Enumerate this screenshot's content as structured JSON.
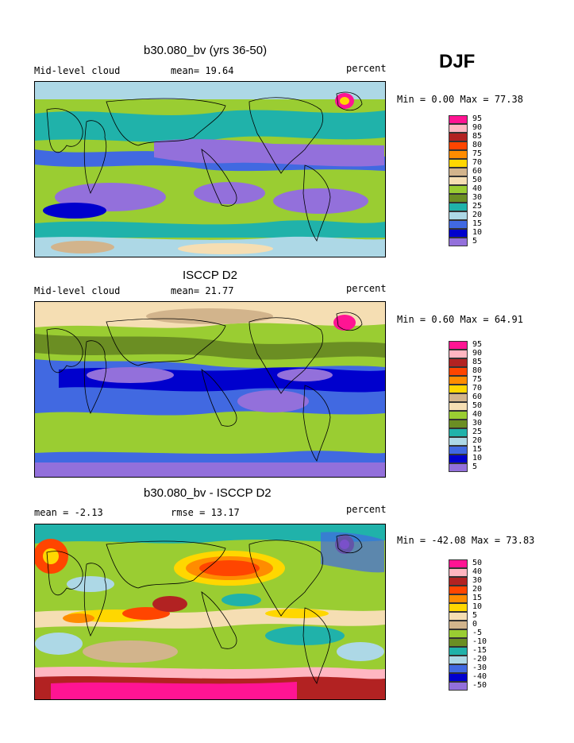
{
  "season": "DJF",
  "panels": [
    {
      "title": "b30.080_bv (yrs 36-50)",
      "left_label": "Mid-level cloud",
      "center_label": "mean=  19.64",
      "right_label": "percent",
      "minmax": "Min =   0.00 Max =  77.38"
    },
    {
      "title": "ISCCP D2",
      "left_label": "Mid-level cloud",
      "center_label": "mean=  21.77",
      "right_label": "percent",
      "minmax": "Min =   0.60 Max =  64.91"
    },
    {
      "title": "b30.080_bv - ISCCP D2",
      "left_label": "mean =  -2.13",
      "center_label": "rmse =  13.17",
      "right_label": "percent",
      "minmax": "Min = -42.08 Max =  73.83"
    }
  ],
  "legend_abs": {
    "labels": [
      "95",
      "90",
      "85",
      "80",
      "75",
      "70",
      "60",
      "50",
      "40",
      "30",
      "25",
      "20",
      "15",
      "10",
      "5"
    ],
    "colors": [
      "#ff1493",
      "#ffb6c1",
      "#b22222",
      "#ff4500",
      "#ff8c00",
      "#ffd700",
      "#d2b48c",
      "#f5deb3",
      "#9acd32",
      "#6b8e23",
      "#20b2aa",
      "#add8e6",
      "#4169e1",
      "#0000cd",
      "#9370db"
    ]
  },
  "legend_diff": {
    "labels": [
      "50",
      "40",
      "30",
      "20",
      "15",
      "10",
      "5",
      "0",
      "-5",
      "-10",
      "-15",
      "-20",
      "-30",
      "-40",
      "-50"
    ],
    "colors": [
      "#ff1493",
      "#ffb6c1",
      "#b22222",
      "#ff4500",
      "#ff8c00",
      "#ffd700",
      "#f5deb3",
      "#d2b48c",
      "#9acd32",
      "#6b8e23",
      "#20b2aa",
      "#add8e6",
      "#4169e1",
      "#0000cd",
      "#9370db"
    ]
  }
}
